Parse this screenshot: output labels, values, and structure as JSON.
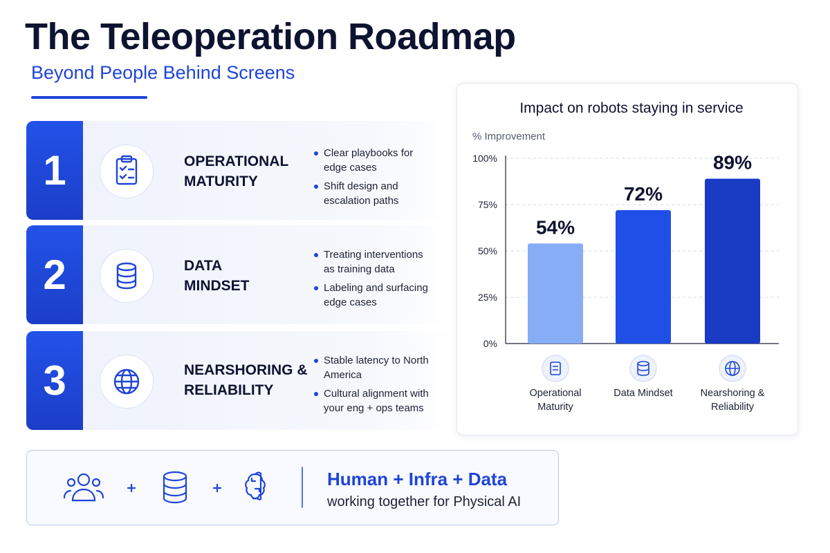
{
  "header": {
    "title": "The Teleoperation Roadmap",
    "subtitle": "Beyond People Behind Screens"
  },
  "steps": [
    {
      "number": "1",
      "title_lines": [
        "OPERATIONAL",
        "MATURITY"
      ],
      "bullets": [
        "Clear playbooks for edge cases",
        "Shift design and escalation paths"
      ]
    },
    {
      "number": "2",
      "title_lines": [
        "DATA",
        "MINDSET"
      ],
      "bullets": [
        "Treating interventions as training data",
        "Labeling and surfacing edge cases"
      ]
    },
    {
      "number": "3",
      "title_lines": [
        "NEARSHORING &",
        "RELIABILITY"
      ],
      "bullets": [
        "Stable latency to North America",
        "Cultural alignment with your eng + ops teams"
      ]
    }
  ],
  "chart_data": {
    "type": "bar",
    "title": "Impact on robots staying in service",
    "y_label": "% Improvement",
    "categories": [
      "Operational Maturity",
      "Data Mindset",
      "Nearshoring & Reliability"
    ],
    "values": [
      54,
      72,
      89
    ],
    "value_labels": [
      "54%",
      "72%",
      "89%"
    ],
    "colors": [
      "#86adf6",
      "#1f4fe6",
      "#1a3bc4"
    ],
    "ylim": [
      0,
      100
    ],
    "yticks": [
      {
        "value": 0,
        "label": "0%"
      },
      {
        "value": 25,
        "label": "25%"
      },
      {
        "value": 50,
        "label": "50%"
      },
      {
        "value": 75,
        "label": "75%"
      },
      {
        "value": 100,
        "label": "100%"
      }
    ],
    "grid": true
  },
  "footer": {
    "headline": "Human + Infra + Data",
    "text": "working together for Physical AI"
  }
}
